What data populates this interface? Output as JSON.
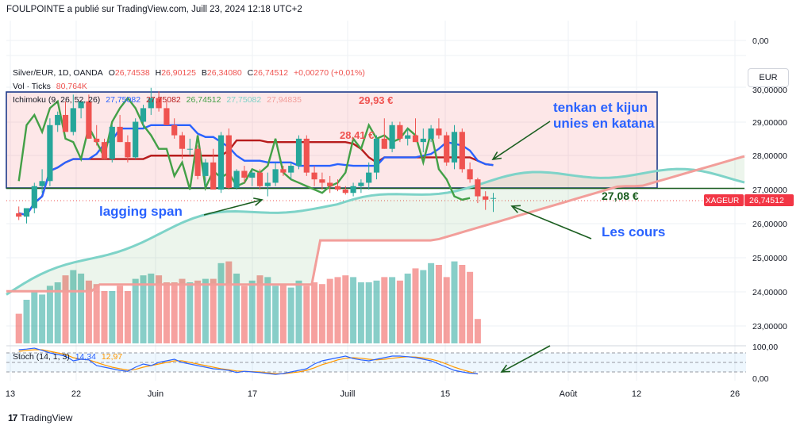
{
  "publisher_line": "FOULPOINTE a publié sur TradingView.com, Juill 23, 2024 12:18 UTC+2",
  "brand": {
    "logo": "17",
    "name": "TradingView"
  },
  "currency_button": "EUR",
  "legend": {
    "symbol": "Silver/EUR, 1D, OANDA",
    "o_label": "O",
    "o_value": "26,74538",
    "h_label": "H",
    "h_value": "26,90125",
    "b_label": "B",
    "b_value": "26,34080",
    "c_label": "C",
    "c_value": "26,74512",
    "change": "+0,00270 (+0,01%)",
    "vol_label": "Vol · Ticks",
    "vol_value": "80,764K",
    "ichimoku_label": "Ichimoku (9, 26, 52, 26)",
    "ichimoku_values": [
      "27,75082",
      "27,75082",
      "26,74512",
      "27,75082",
      "27,94835"
    ],
    "stoch_label": "Stoch (14, 1, 3)",
    "stoch_values": [
      "14,34",
      "12,97"
    ]
  },
  "annotations": {
    "top_price": "29,93 €",
    "mid_price": "28,41 €",
    "low_price": "27,08 €",
    "tenkan_kijun": [
      "tenkan et kijun",
      "unies en katana"
    ],
    "lagging_span": "lagging span",
    "les_cours": "Les cours"
  },
  "price_axis": {
    "ticks": [
      "0,00",
      "30,00000",
      "29,00000",
      "28,00000",
      "27,00000",
      "26,00000",
      "25,00000",
      "24,00000",
      "23,00000"
    ],
    "last_symbol": "XAGEUR",
    "last_value": "26,74512"
  },
  "stoch_axis": {
    "ticks": [
      "100,00",
      "0,00"
    ]
  },
  "time_axis": {
    "labels": [
      "13",
      "22",
      "Juin",
      "17",
      "Juill",
      "15",
      "Août",
      "12",
      "26"
    ]
  },
  "colors": {
    "up": "#26a69a",
    "down": "#ef5350",
    "tenkan": "#2962ff",
    "kijun": "#b71c1c",
    "lagging": "#43a047",
    "span_a": "#7ed3c8",
    "span_b": "#f29e9a",
    "annotation_blue": "#2962ff"
  },
  "chart_data": {
    "type": "candlestick",
    "x_labels": [
      "13",
      "22",
      "Juin",
      "17",
      "Juill",
      "15",
      "Août",
      "12",
      "26"
    ],
    "ylim": [
      23,
      30.3
    ],
    "candles_ohlc": [
      [
        26.3,
        26.5,
        26.1,
        26.2
      ],
      [
        26.2,
        26.3,
        26.0,
        26.45
      ],
      [
        26.45,
        27.2,
        26.3,
        27.1
      ],
      [
        27.1,
        27.6,
        26.9,
        27.25
      ],
      [
        27.25,
        29.1,
        27.1,
        28.9
      ],
      [
        28.9,
        29.3,
        28.7,
        29.2
      ],
      [
        29.2,
        29.6,
        28.8,
        28.7
      ],
      [
        28.7,
        29.8,
        28.6,
        29.4
      ],
      [
        29.4,
        29.5,
        29.1,
        29.6
      ],
      [
        29.6,
        29.8,
        28.5,
        28.5
      ],
      [
        28.5,
        28.9,
        28.3,
        28.4
      ],
      [
        28.4,
        28.5,
        27.9,
        27.9
      ],
      [
        27.9,
        28.9,
        27.8,
        28.85
      ],
      [
        28.85,
        29.2,
        28.4,
        28.4
      ],
      [
        28.4,
        28.6,
        27.8,
        27.95
      ],
      [
        27.95,
        29.1,
        27.9,
        29.0
      ],
      [
        29.0,
        29.5,
        28.8,
        29.4
      ],
      [
        29.4,
        30.0,
        29.2,
        29.7
      ],
      [
        29.7,
        29.9,
        29.3,
        29.4
      ],
      [
        29.4,
        29.6,
        28.9,
        28.9
      ],
      [
        28.9,
        29.1,
        28.5,
        28.6
      ],
      [
        28.6,
        28.7,
        27.9,
        28.2
      ],
      [
        28.2,
        28.5,
        28.0,
        28.2
      ],
      [
        28.2,
        28.3,
        27.3,
        27.4
      ],
      [
        27.4,
        27.9,
        27.1,
        27.8
      ],
      [
        27.8,
        28.2,
        27.5,
        27.0
      ],
      [
        27.0,
        28.7,
        26.9,
        28.6
      ],
      [
        28.6,
        28.8,
        27.0,
        27.05
      ],
      [
        27.05,
        27.6,
        27.0,
        27.55
      ],
      [
        27.55,
        27.7,
        27.2,
        27.35
      ],
      [
        27.35,
        27.6,
        27.1,
        27.5
      ],
      [
        27.5,
        27.6,
        27.0,
        27.1
      ],
      [
        27.1,
        27.5,
        26.8,
        27.2
      ],
      [
        27.2,
        27.8,
        27.1,
        27.6
      ],
      [
        27.6,
        27.7,
        27.4,
        27.5
      ],
      [
        27.5,
        27.8,
        27.3,
        27.7
      ],
      [
        27.7,
        28.6,
        27.6,
        28.5
      ],
      [
        28.5,
        28.6,
        27.4,
        27.5
      ],
      [
        27.5,
        27.7,
        27.1,
        27.3
      ],
      [
        27.3,
        27.5,
        27.0,
        27.2
      ],
      [
        27.2,
        27.4,
        26.9,
        27.1
      ],
      [
        27.1,
        27.3,
        26.95,
        27.0
      ],
      [
        27.0,
        27.1,
        26.85,
        26.9
      ],
      [
        26.9,
        27.2,
        26.8,
        27.1
      ],
      [
        27.1,
        27.3,
        26.9,
        27.2
      ],
      [
        27.2,
        27.8,
        27.0,
        27.5
      ],
      [
        27.5,
        28.6,
        27.3,
        28.5
      ],
      [
        28.5,
        29.1,
        28.2,
        28.2
      ],
      [
        28.2,
        29.0,
        28.1,
        28.9
      ],
      [
        28.9,
        29.0,
        28.4,
        28.5
      ],
      [
        28.5,
        28.8,
        28.3,
        28.6
      ],
      [
        28.6,
        29.1,
        28.4,
        28.4
      ],
      [
        28.4,
        28.8,
        28.1,
        28.5
      ],
      [
        28.5,
        28.9,
        28.4,
        28.8
      ],
      [
        28.8,
        29.1,
        28.5,
        28.6
      ],
      [
        28.6,
        28.7,
        27.7,
        27.8
      ],
      [
        27.8,
        28.9,
        27.6,
        28.7
      ],
      [
        28.7,
        28.8,
        27.5,
        27.6
      ],
      [
        27.6,
        27.8,
        27.2,
        27.3
      ],
      [
        27.3,
        27.35,
        26.6,
        26.8
      ],
      [
        26.8,
        26.95,
        26.4,
        26.7
      ],
      [
        26.74,
        26.9,
        26.34,
        26.75
      ]
    ],
    "volume_relative": [
      0.17,
      0.25,
      0.3,
      0.28,
      0.33,
      0.35,
      0.39,
      0.42,
      0.4,
      0.36,
      0.34,
      0.3,
      0.3,
      0.33,
      0.3,
      0.37,
      0.39,
      0.4,
      0.39,
      0.35,
      0.35,
      0.37,
      0.35,
      0.36,
      0.37,
      0.37,
      0.46,
      0.47,
      0.4,
      0.33,
      0.36,
      0.39,
      0.38,
      0.33,
      0.34,
      0.32,
      0.36,
      0.33,
      0.35,
      0.34,
      0.37,
      0.38,
      0.39,
      0.38,
      0.35,
      0.35,
      0.36,
      0.38,
      0.38,
      0.36,
      0.4,
      0.43,
      0.42,
      0.46,
      0.45,
      0.38,
      0.47,
      0.45,
      0.41,
      0.14
    ],
    "stochastic_k": [
      90,
      92,
      95,
      88,
      80,
      75,
      70,
      55,
      60,
      58,
      40,
      35,
      30,
      25,
      22,
      35,
      45,
      40,
      50,
      55,
      60,
      50,
      45,
      40,
      35,
      30,
      28,
      25,
      18,
      22,
      20,
      18,
      15,
      12,
      15,
      20,
      25,
      30,
      45,
      55,
      60,
      65,
      70,
      62,
      58,
      55,
      60,
      65,
      70,
      70,
      68,
      65,
      60,
      55,
      45,
      35,
      25,
      20,
      16,
      14.34
    ],
    "stochastic_d": [
      85,
      88,
      90,
      90,
      85,
      80,
      75,
      65,
      60,
      58,
      50,
      42,
      35,
      30,
      26,
      28,
      35,
      40,
      45,
      50,
      55,
      55,
      50,
      45,
      40,
      35,
      30,
      27,
      23,
      22,
      21,
      20,
      17,
      15,
      14,
      17,
      20,
      25,
      33,
      43,
      50,
      58,
      63,
      65,
      63,
      60,
      58,
      60,
      63,
      66,
      68,
      67,
      64,
      60,
      54,
      45,
      35,
      27,
      20,
      12.97
    ]
  }
}
